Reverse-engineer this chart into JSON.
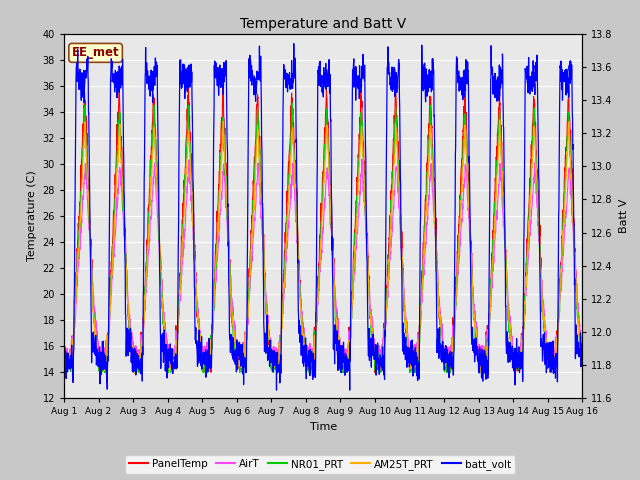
{
  "title": "Temperature and Batt V",
  "xlabel": "Time",
  "ylabel_left": "Temperature (C)",
  "ylabel_right": "Batt V",
  "station_label": "EE_met",
  "ylim_left": [
    12,
    40
  ],
  "ylim_right": [
    11.6,
    13.8
  ],
  "fig_bg_color": "#c8c8c8",
  "plot_bg_color": "#e8e8e8",
  "series": {
    "PanelTemp": {
      "color": "#ff0000",
      "lw": 0.8
    },
    "AirT": {
      "color": "#ff44ff",
      "lw": 0.8
    },
    "NR01_PRT": {
      "color": "#00cc00",
      "lw": 0.8
    },
    "AM25T_PRT": {
      "color": "#ffaa00",
      "lw": 0.8
    },
    "batt_volt": {
      "color": "#0000ff",
      "lw": 0.9
    }
  },
  "xtick_labels": [
    "Aug 1",
    "Aug 2",
    "Aug 3",
    "Aug 4",
    "Aug 5",
    "Aug 6",
    "Aug 7",
    "Aug 8",
    "Aug 9",
    "Aug 10",
    "Aug 11",
    "Aug 12",
    "Aug 13",
    "Aug 14",
    "Aug 15",
    "Aug 16"
  ],
  "yticks_left": [
    12,
    14,
    16,
    18,
    20,
    22,
    24,
    26,
    28,
    30,
    32,
    34,
    36,
    38,
    40
  ],
  "yticks_right": [
    11.6,
    11.8,
    12.0,
    12.2,
    12.4,
    12.6,
    12.8,
    13.0,
    13.2,
    13.4,
    13.6,
    13.8
  ],
  "n_days": 15,
  "pts_per_day": 144
}
